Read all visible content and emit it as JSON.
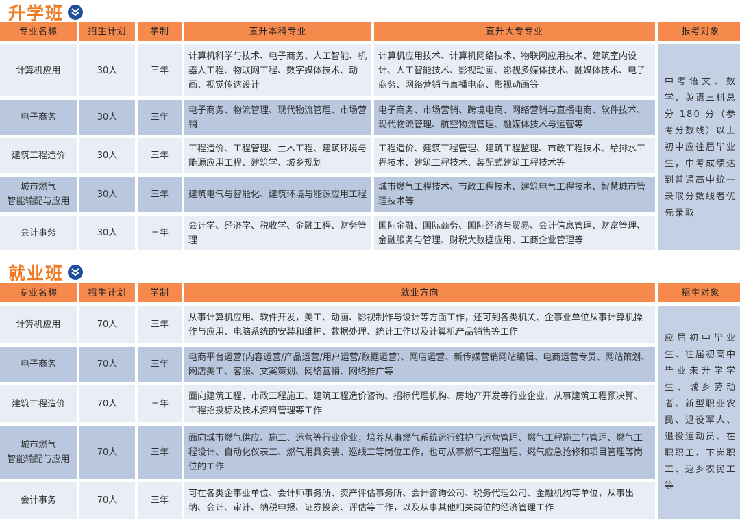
{
  "colors": {
    "header": "#f6894c",
    "title": "#f07a22",
    "row_light": "#e9edf5",
    "row_dark": "#b9c8df",
    "icon": "#1f4f9c"
  },
  "upgrade": {
    "title": "升学班",
    "icon": "double-chevron-down-icon",
    "headers": [
      "专业名称",
      "招生计划",
      "学制",
      "直升本科专业",
      "直升大专专业",
      "报考对象"
    ],
    "rows": [
      {
        "major": "计算机应用",
        "plan": "30人",
        "years": "三年",
        "bachelor": "计算机科学与技术、电子商务、人工智能、机器人工程、物联网工程、数字媒体技术、动画、视觉传达设计",
        "college": "计算机应用技术、计算机网络技术、物联网应用技术、建筑室内设计、人工智能技术、影视动画、影视多媒体技术、融媒体技术、电子商务、网络营销与直播电商、影视动画等"
      },
      {
        "major": "电子商务",
        "plan": "30人",
        "years": "三年",
        "bachelor": "电子商务、物流管理、现代物流管理、市场营销",
        "college": "电子商务、市场营销、跨境电商、网络营销与直播电商、软件技术、现代物流管理、航空物流管理、融媒体技术与运营等"
      },
      {
        "major": "建筑工程造价",
        "plan": "30人",
        "years": "三年",
        "bachelor": "工程造价、工程管理、土木工程、建筑环境与能源应用工程、建筑学、城乡规划",
        "college": "工程造价、建筑工程管理、建筑工程监理、市政工程技术、给排水工程技术、建筑工程技术、装配式建筑工程技术等"
      },
      {
        "major": "城市燃气\n智能输配与应用",
        "plan": "30人",
        "years": "三年",
        "bachelor": "建筑电气与智能化、建筑环境与能源应用工程",
        "college": "城市燃气工程技术、市政工程技术、建筑电气工程技术、智慧城市管理技术等"
      },
      {
        "major": "会计事务",
        "plan": "30人",
        "years": "三年",
        "bachelor": "会计学、经济学、税收学、金融工程、财务管理",
        "college": "国际金融、国际商务、国际经济与贸易、会计信息管理、财富管理、金融服务与管理、财税大数据应用、工商企业管理等"
      }
    ],
    "target": "中考语文、数学、英语三科总分 180 分（参考分数线）以上初中应往届毕业生，中考成绩达到普通高中统一录取分数线者优先录取"
  },
  "employment": {
    "title": "就业班",
    "icon": "double-chevron-down-icon",
    "headers": [
      "专业名称",
      "招生计划",
      "学制",
      "就业方向",
      "招生对象"
    ],
    "rows": [
      {
        "major": "计算机应用",
        "plan": "70人",
        "years": "三年",
        "direction": "从事计算机应用、软件开发，美工、动画、影视制作与设计等方面工作，还可到各类机关、企事业单位从事计算机操作与应用、电脑系统的安装和维护、数据处理、统计工作以及计算机产品销售等工作"
      },
      {
        "major": "电子商务",
        "plan": "70人",
        "years": "三年",
        "direction": "电商平台运营(内容运营/产品运营/用户运营/数据运营)、网店运营、新传媒营销网站编辑、电商运营专员、网站策划、网店美工、客服、文案策划、网络营销、网络推广等"
      },
      {
        "major": "建筑工程造价",
        "plan": "70人",
        "years": "三年",
        "direction": "面向建筑工程、市政工程施工、建筑工程造价咨询、招标代理机构、房地产开发等行业企业，从事建筑工程预决算、工程招投标及技术资料管理等工作"
      },
      {
        "major": "城市燃气\n智能输配与应用",
        "plan": "70人",
        "years": "三年",
        "direction": "面向城市燃气供应、施工、运营等行业企业，培养从事燃气系统运行维护与运营管理、燃气工程施工与管理、燃气工程设计、自动化仪表工、燃气用具安装、巡线工等岗位工作，也可从事燃气工程监理、燃气应急抢修和项目管理等岗位的工作"
      },
      {
        "major": "会计事务",
        "plan": "70人",
        "years": "三年",
        "direction": "可在各类企事业单位、会计师事务所、资产评估事务所、会计咨询公司、税务代理公司、金融机构等单位，从事出纳、会计、审计、纳税申报、证券投资、评估等工作，以及从事其他相关岗位的经济管理工作"
      }
    ],
    "target": "应届初中毕业生、往届初高中毕业未升学学生、城乡劳动者、新型职业农民、退役军人、退役运动员、在职职工、下岗职工、返乡农民工等"
  }
}
